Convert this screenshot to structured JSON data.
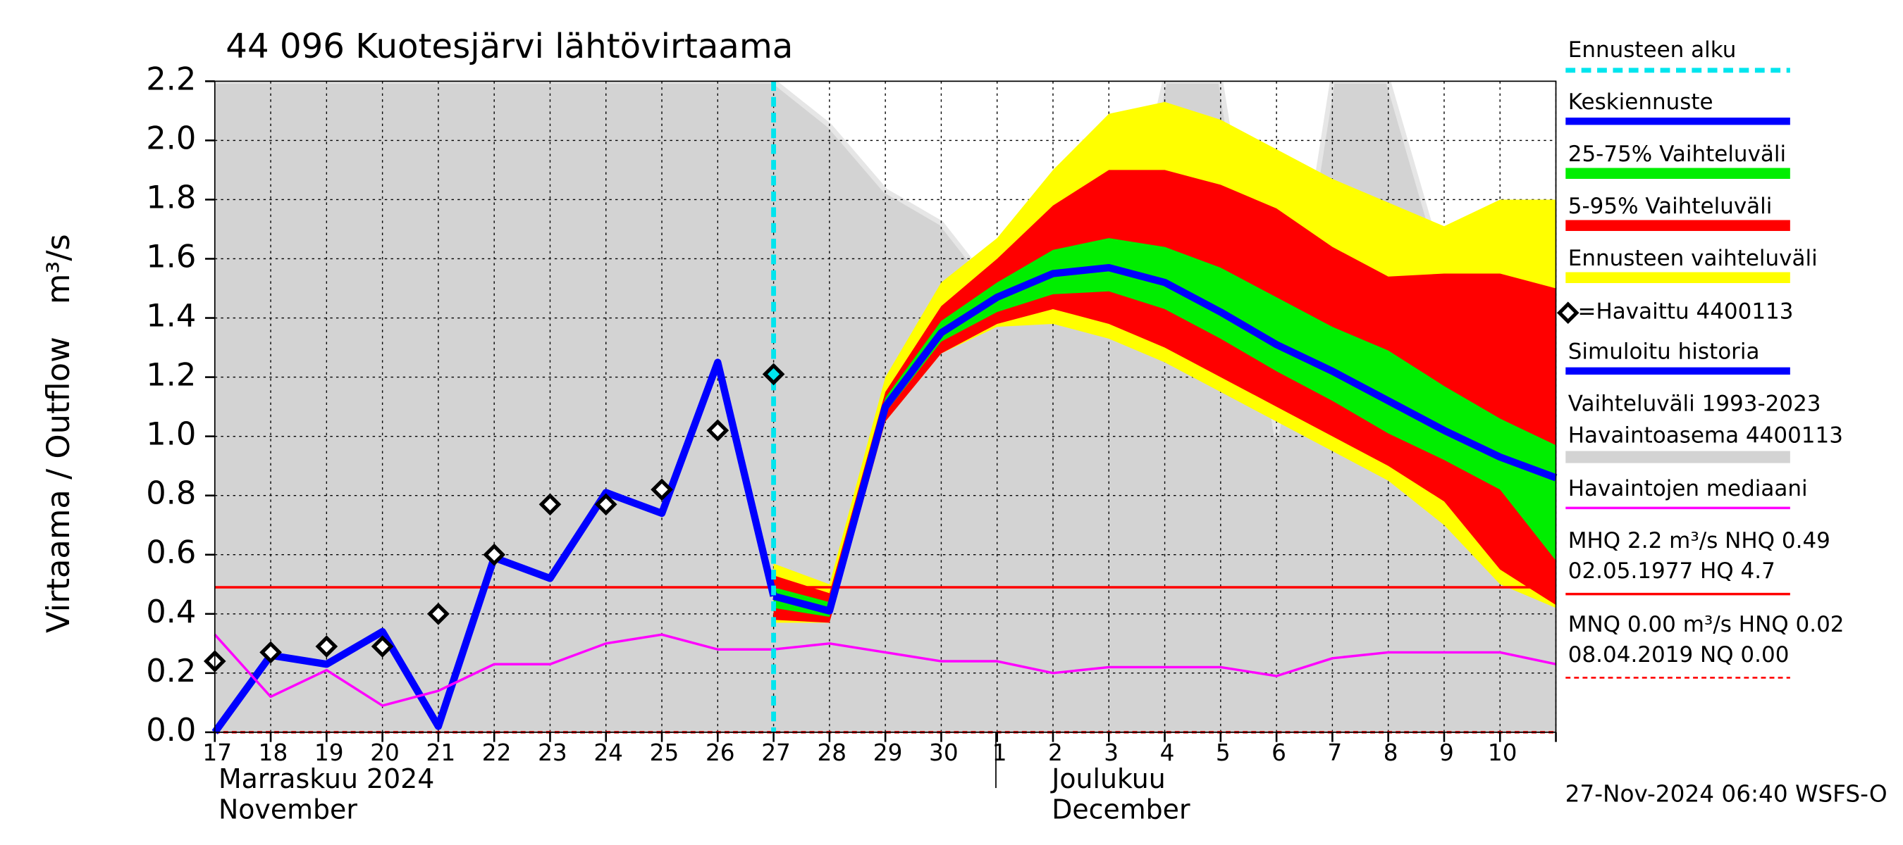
{
  "chart_data": {
    "type": "line",
    "title": "44 096 Kuotesjärvi lähtövirtaama",
    "ylabel": [
      "Virtaama / Outflow",
      "m³/s"
    ],
    "categories": [
      "17",
      "18",
      "19",
      "20",
      "21",
      "22",
      "23",
      "24",
      "25",
      "26",
      "27",
      "28",
      "29",
      "30",
      "1",
      "2",
      "3",
      "4",
      "5",
      "6",
      "7",
      "8",
      "9",
      "10",
      null
    ],
    "months": [
      {
        "index": 0,
        "lines": [
          "Marraskuu 2024",
          "November"
        ]
      },
      {
        "index": 14,
        "lines": [
          "Joulukuu",
          "December"
        ]
      }
    ],
    "ylim": [
      0,
      2.2
    ],
    "yticks": [
      {
        "value": 0,
        "label": "0.0"
      },
      0.2,
      0.4,
      0.6,
      0.8,
      {
        "value": 1,
        "label": "1.0"
      },
      1.2,
      1.4,
      1.6,
      1.8,
      {
        "value": 2,
        "label": "2.0"
      },
      2.2
    ],
    "grid": true,
    "forecast_start": {
      "name": "Ennusteen alku",
      "x": "27",
      "color": "#00e5ee"
    },
    "series": [
      {
        "name": "Keskiennuste",
        "kind": "line",
        "color": "#0000ff",
        "values": [
          null,
          null,
          null,
          null,
          null,
          null,
          null,
          null,
          null,
          null,
          0.46,
          0.41,
          1.1,
          1.35,
          1.47,
          1.55,
          1.57,
          1.52,
          1.42,
          1.31,
          1.22,
          1.12,
          1.02,
          0.93,
          0.86
        ]
      },
      {
        "name": "25-75% Vaihteluväli",
        "kind": "band",
        "color": "#00ee00",
        "upper": [
          null,
          null,
          null,
          null,
          null,
          null,
          null,
          null,
          null,
          null,
          0.49,
          0.44,
          1.13,
          1.39,
          1.52,
          1.63,
          1.67,
          1.64,
          1.57,
          1.47,
          1.37,
          1.29,
          1.17,
          1.06,
          0.97
        ],
        "lower": [
          null,
          null,
          null,
          null,
          null,
          null,
          null,
          null,
          null,
          null,
          0.42,
          0.39,
          1.08,
          1.32,
          1.42,
          1.48,
          1.49,
          1.43,
          1.33,
          1.22,
          1.12,
          1.01,
          0.92,
          0.82,
          0.58
        ]
      },
      {
        "name": "5-95% Vaihteluväli",
        "kind": "band",
        "color": "#ff0000",
        "upper": [
          null,
          null,
          null,
          null,
          null,
          null,
          null,
          null,
          null,
          null,
          0.53,
          0.47,
          1.15,
          1.44,
          1.6,
          1.78,
          1.9,
          1.9,
          1.85,
          1.77,
          1.64,
          1.54,
          1.55,
          1.55,
          1.5
        ],
        "lower": [
          null,
          null,
          null,
          null,
          null,
          null,
          null,
          null,
          null,
          null,
          0.38,
          0.37,
          1.05,
          1.28,
          1.38,
          1.43,
          1.38,
          1.3,
          1.2,
          1.1,
          1.0,
          0.9,
          0.78,
          0.55,
          0.43
        ]
      },
      {
        "name": "Ennusteen vaihteluväli",
        "kind": "band",
        "color": "#ffff00",
        "upper": [
          null,
          null,
          null,
          null,
          null,
          null,
          null,
          null,
          null,
          null,
          0.57,
          0.5,
          1.2,
          1.52,
          1.67,
          1.9,
          2.09,
          2.13,
          2.07,
          1.97,
          1.87,
          1.79,
          1.71,
          1.8,
          1.8
        ],
        "lower": [
          null,
          null,
          null,
          null,
          null,
          null,
          null,
          null,
          null,
          null,
          0.37,
          0.37,
          1.05,
          1.28,
          1.37,
          1.38,
          1.33,
          1.25,
          1.15,
          1.05,
          0.95,
          0.85,
          0.7,
          0.5,
          0.42
        ]
      },
      {
        "name": "=Havaittu 4400113",
        "kind": "points",
        "color": "#000000",
        "values": [
          0.24,
          0.27,
          0.29,
          0.29,
          0.4,
          0.6,
          0.77,
          0.77,
          0.82,
          1.02,
          1.21,
          null,
          null,
          null,
          null,
          null,
          null,
          null,
          null,
          null,
          null,
          null,
          null,
          null,
          null
        ]
      },
      {
        "name": "Simuloitu historia",
        "kind": "line",
        "color": "#0000ff",
        "values": [
          0.0,
          0.26,
          0.23,
          0.34,
          0.02,
          0.59,
          0.52,
          0.81,
          0.74,
          1.25,
          0.46,
          null,
          null,
          null,
          null,
          null,
          null,
          null,
          null,
          null,
          null,
          null,
          null,
          null,
          null
        ]
      },
      {
        "name": [
          "Vaihteluväli 1993-2023",
          " Havaintoasema 4400113"
        ],
        "kind": "band",
        "color": "#d3d3d3",
        "edge_color": "#e6e6e6",
        "upper": [
          2.2,
          2.2,
          2.2,
          2.2,
          2.2,
          2.2,
          2.2,
          2.2,
          2.2,
          2.2,
          2.2,
          2.05,
          1.83,
          1.72,
          1.48,
          1.68,
          1.35,
          2.2,
          2.2,
          1.0,
          2.2,
          2.2,
          1.55,
          1.47,
          1.32
        ],
        "lower": [
          0,
          0,
          0,
          0,
          0,
          0,
          0,
          0,
          0,
          0,
          0,
          0,
          0,
          0,
          0,
          0,
          0,
          0,
          0,
          0,
          0,
          0,
          0,
          0,
          0
        ]
      },
      {
        "name": "Havaintojen mediaani",
        "kind": "line",
        "color": "#ff00ff",
        "values": [
          0.33,
          0.12,
          0.21,
          0.09,
          0.14,
          0.23,
          0.23,
          0.3,
          0.33,
          0.28,
          0.28,
          0.3,
          0.27,
          0.24,
          0.24,
          0.2,
          0.22,
          0.22,
          0.22,
          0.19,
          0.25,
          0.27,
          0.27,
          0.27,
          0.23
        ]
      }
    ],
    "reference_lines": [
      {
        "lines": [
          "MHQ  2.2 m³/s NHQ 0.49",
          "02.05.1977 HQ  4.7"
        ],
        "value": 0.49,
        "color": "#ff0000",
        "dashed": false
      },
      {
        "lines": [
          "MNQ 0.00 m³/s HNQ 0.02",
          "08.04.2019 NQ 0.00"
        ],
        "value": 0,
        "color": "#ff0000",
        "dashed": true
      }
    ],
    "timestamp": "27-Nov-2024 06:40 WSFS-O"
  }
}
